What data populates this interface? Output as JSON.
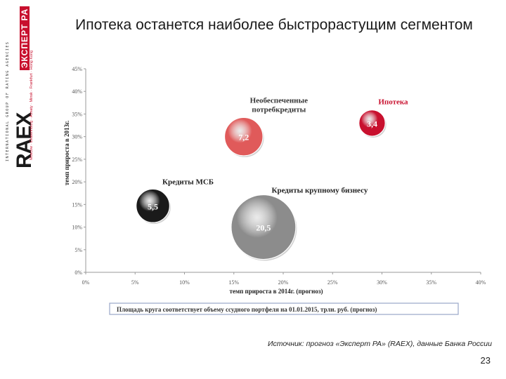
{
  "slide": {
    "title": "Ипотека останется наиболее быстрорастущим сегментом",
    "source": "Источник: прогноз «Эксперт РА» (RAEX), данные Банка России",
    "page_number": "23"
  },
  "logo": {
    "tagline": "INTERNATIONAL GROUP OF RATING AGENCIES",
    "brand": "RAEX",
    "brand_sub": "ЭКСПЕРТ РА",
    "cities": "Moscow · Ekaterinburg · Almaty · Minsk · Frankfurt · Hong Kong"
  },
  "chart_data": {
    "type": "scatter",
    "subtype": "bubble",
    "xlabel": "темп прироста в 2014г. (прогноз)",
    "ylabel": "темп прироста в 2013г.",
    "xlim": [
      0,
      40
    ],
    "ylim": [
      0,
      45
    ],
    "x_ticks": [
      "0%",
      "5%",
      "10%",
      "15%",
      "20%",
      "25%",
      "30%",
      "35%",
      "40%"
    ],
    "y_ticks": [
      "0%",
      "5%",
      "10%",
      "15%",
      "20%",
      "25%",
      "30%",
      "35%",
      "40%",
      "45%"
    ],
    "grid": false,
    "note": "Площадь круга соответствует объему ссудного портфеля на 01.01.2015, трлн. руб. (прогноз)",
    "points": [
      {
        "label": "Необеспеченные потребкредиты",
        "x": 16.0,
        "y": 30.0,
        "size": 7.2,
        "value_label": "7,2",
        "color": "#e05a5a",
        "label_color": "#333333"
      },
      {
        "label": "Ипотека",
        "x": 29.0,
        "y": 33.0,
        "size": 3.4,
        "value_label": "3,4",
        "color": "#c8102e",
        "label_color": "#c8102e"
      },
      {
        "label": "Кредиты МСБ",
        "x": 6.8,
        "y": 14.7,
        "size": 5.5,
        "value_label": "5,5",
        "color": "#1a1a1a",
        "label_color": "#222222"
      },
      {
        "label": "Кредиты крупному бизнесу",
        "x": 18.0,
        "y": 10.0,
        "size": 20.5,
        "value_label": "20,5",
        "color": "#8c8c8c",
        "label_color": "#222222"
      }
    ]
  }
}
